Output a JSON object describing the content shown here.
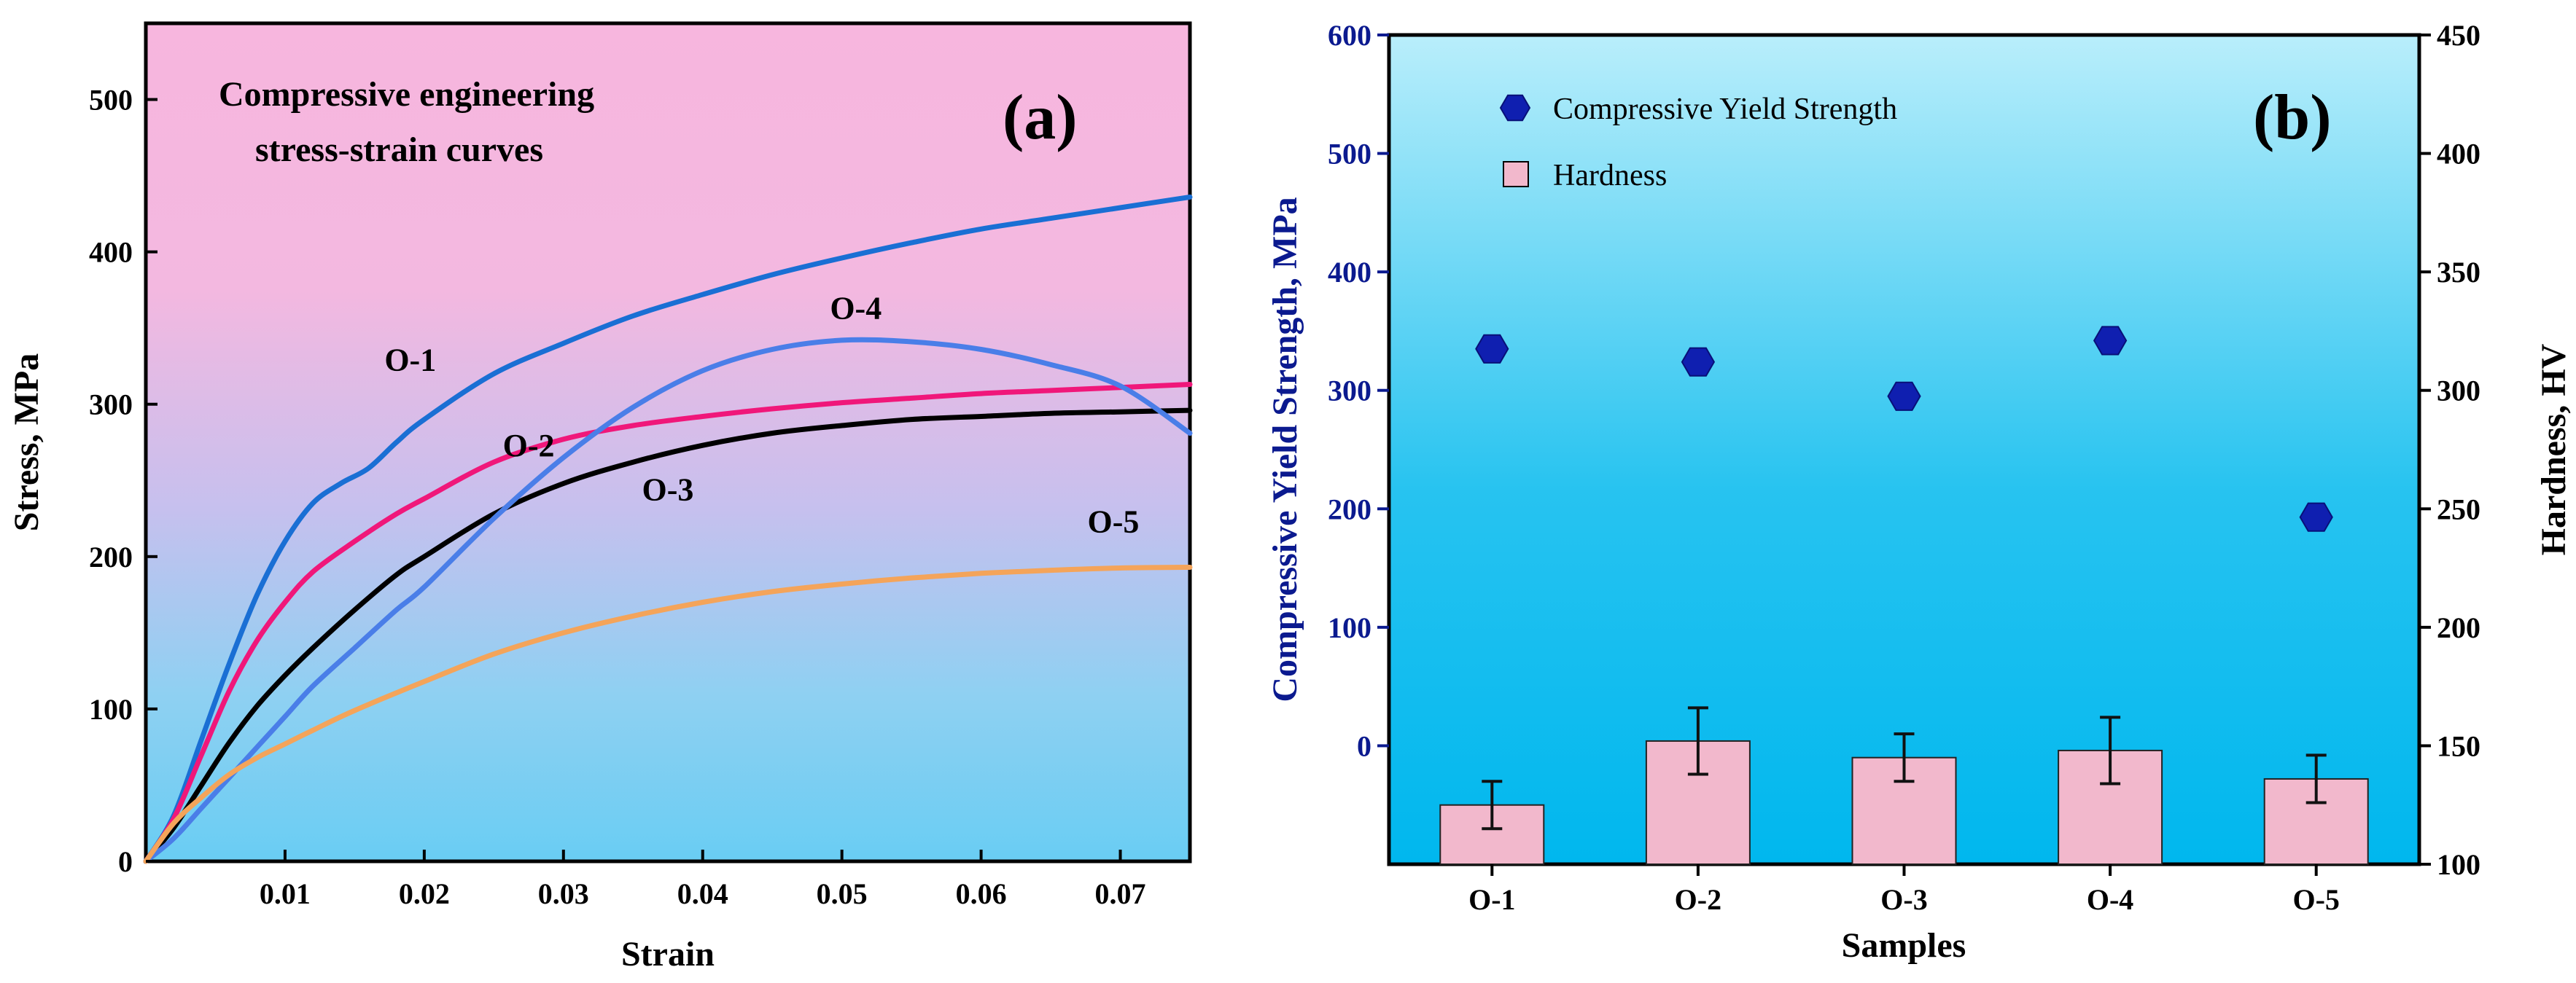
{
  "chart_data": [
    {
      "type": "line",
      "panel_label": "(a)",
      "title": "Compressive engineering\nstress-strain curves",
      "xlabel": "Strain",
      "ylabel": "Stress, MPa",
      "xlim": [
        0,
        0.075
      ],
      "ylim": [
        0,
        550
      ],
      "xticks": [
        0.01,
        0.02,
        0.03,
        0.04,
        0.05,
        0.06,
        0.07
      ],
      "xtick_labels": [
        "0.01",
        "0.02",
        "0.03",
        "0.04",
        "0.05",
        "0.06",
        "0.07"
      ],
      "yticks": [
        0,
        100,
        200,
        300,
        400,
        500
      ],
      "ytick_labels": [
        "0",
        "100",
        "200",
        "300",
        "400",
        "500"
      ],
      "grid": false,
      "legend": "none",
      "series": [
        {
          "name": "O-1",
          "color": "#1a6fd4",
          "label_at": [
            0.019,
            322
          ],
          "points": [
            [
              0,
              0
            ],
            [
              0.002,
              30
            ],
            [
              0.004,
              80
            ],
            [
              0.006,
              130
            ],
            [
              0.008,
              175
            ],
            [
              0.01,
              210
            ],
            [
              0.012,
              235
            ],
            [
              0.014,
              248
            ],
            [
              0.016,
              258
            ],
            [
              0.018,
              275
            ],
            [
              0.02,
              290
            ],
            [
              0.025,
              320
            ],
            [
              0.03,
              340
            ],
            [
              0.035,
              358
            ],
            [
              0.04,
              372
            ],
            [
              0.045,
              385
            ],
            [
              0.05,
              396
            ],
            [
              0.055,
              406
            ],
            [
              0.06,
              415
            ],
            [
              0.065,
              422
            ],
            [
              0.07,
              429
            ],
            [
              0.075,
              436
            ]
          ]
        },
        {
          "name": "O-2",
          "color": "#f0177a",
          "label_at": [
            0.0275,
            266
          ],
          "points": [
            [
              0,
              0
            ],
            [
              0.002,
              28
            ],
            [
              0.004,
              70
            ],
            [
              0.006,
              112
            ],
            [
              0.008,
              145
            ],
            [
              0.01,
              170
            ],
            [
              0.012,
              190
            ],
            [
              0.015,
              210
            ],
            [
              0.018,
              228
            ],
            [
              0.02,
              238
            ],
            [
              0.025,
              262
            ],
            [
              0.03,
              277
            ],
            [
              0.035,
              286
            ],
            [
              0.04,
              292
            ],
            [
              0.045,
              297
            ],
            [
              0.05,
              301
            ],
            [
              0.055,
              304
            ],
            [
              0.06,
              307
            ],
            [
              0.065,
              309
            ],
            [
              0.07,
              311
            ],
            [
              0.075,
              313
            ]
          ]
        },
        {
          "name": "O-3",
          "color": "#000000",
          "label_at": [
            0.0375,
            237
          ],
          "points": [
            [
              0,
              0
            ],
            [
              0.002,
              22
            ],
            [
              0.004,
              50
            ],
            [
              0.006,
              78
            ],
            [
              0.008,
              102
            ],
            [
              0.01,
              122
            ],
            [
              0.012,
              140
            ],
            [
              0.015,
              165
            ],
            [
              0.018,
              188
            ],
            [
              0.02,
              200
            ],
            [
              0.025,
              228
            ],
            [
              0.03,
              248
            ],
            [
              0.035,
              262
            ],
            [
              0.04,
              273
            ],
            [
              0.045,
              281
            ],
            [
              0.05,
              286
            ],
            [
              0.055,
              290
            ],
            [
              0.06,
              292
            ],
            [
              0.065,
              294
            ],
            [
              0.07,
              295
            ],
            [
              0.075,
              296
            ]
          ]
        },
        {
          "name": "O-4",
          "color": "#4a7ee8",
          "label_at": [
            0.051,
            356
          ],
          "points": [
            [
              0,
              0
            ],
            [
              0.002,
              15
            ],
            [
              0.004,
              35
            ],
            [
              0.006,
              55
            ],
            [
              0.008,
              75
            ],
            [
              0.01,
              95
            ],
            [
              0.012,
              115
            ],
            [
              0.015,
              140
            ],
            [
              0.018,
              165
            ],
            [
              0.02,
              180
            ],
            [
              0.025,
              225
            ],
            [
              0.03,
              265
            ],
            [
              0.035,
              298
            ],
            [
              0.04,
              322
            ],
            [
              0.045,
              336
            ],
            [
              0.05,
              342
            ],
            [
              0.055,
              341
            ],
            [
              0.06,
              336
            ],
            [
              0.065,
              326
            ],
            [
              0.07,
              312
            ],
            [
              0.075,
              281
            ]
          ]
        },
        {
          "name": "O-5",
          "color": "#f4a45a",
          "label_at": [
            0.0695,
            216
          ],
          "points": [
            [
              0,
              0
            ],
            [
              0.002,
              25
            ],
            [
              0.004,
              42
            ],
            [
              0.006,
              57
            ],
            [
              0.008,
              68
            ],
            [
              0.01,
              77
            ],
            [
              0.012,
              86
            ],
            [
              0.015,
              99
            ],
            [
              0.02,
              118
            ],
            [
              0.025,
              136
            ],
            [
              0.03,
              150
            ],
            [
              0.035,
              161
            ],
            [
              0.04,
              170
            ],
            [
              0.045,
              177
            ],
            [
              0.05,
              182
            ],
            [
              0.055,
              186
            ],
            [
              0.06,
              189
            ],
            [
              0.065,
              191
            ],
            [
              0.07,
              192.5
            ],
            [
              0.075,
              193
            ]
          ]
        }
      ]
    },
    {
      "type": "bar",
      "panel_label": "(b)",
      "xlabel": "Samples",
      "ylabel": "Compressive Yield Strength, MPa",
      "ylabel_right": "Hardness, HV",
      "categories": [
        "O-1",
        "O-2",
        "O-3",
        "O-4",
        "O-5"
      ],
      "ylim": [
        -100,
        600
      ],
      "yticks": [
        0,
        100,
        200,
        300,
        400,
        500,
        600
      ],
      "ytick_labels": [
        "0",
        "100",
        "200",
        "300",
        "400",
        "500",
        "600"
      ],
      "ylim_right": [
        100,
        450
      ],
      "yticks_right": [
        100,
        150,
        200,
        250,
        300,
        350,
        400,
        450
      ],
      "ytick_labels_right": [
        "100",
        "150",
        "200",
        "250",
        "300",
        "350",
        "400",
        "450"
      ],
      "grid": false,
      "legend": "top-left",
      "series": [
        {
          "name": "Compressive Yield Strength",
          "kind": "scatter",
          "marker": "hexagon",
          "axis": "left",
          "color": "#0f1fb0",
          "values": [
            335,
            324,
            295,
            342,
            193
          ]
        },
        {
          "name": "Hardness",
          "kind": "bar",
          "axis": "right",
          "color": "#f2b8cc",
          "values": [
            125,
            152,
            145,
            148,
            136
          ],
          "errors": [
            10,
            14,
            10,
            14,
            10
          ]
        }
      ]
    }
  ]
}
